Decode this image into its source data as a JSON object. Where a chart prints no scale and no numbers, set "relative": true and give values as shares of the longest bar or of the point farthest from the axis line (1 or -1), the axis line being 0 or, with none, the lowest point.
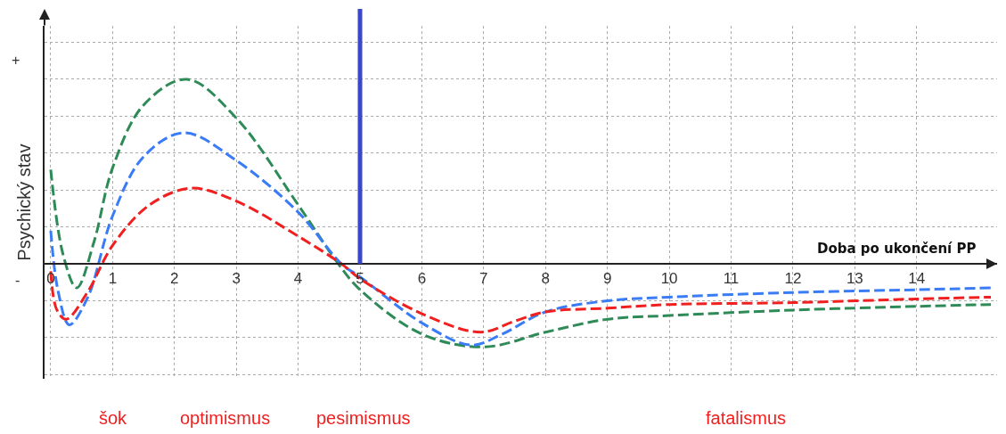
{
  "chart_data": {
    "type": "line",
    "relative": true,
    "xlabel": "Doba po ukončení PP",
    "ylabel": "Psychický stav",
    "xlim": [
      -0.1,
      15.3
    ],
    "xticks": [
      0,
      1,
      2,
      3,
      4,
      5,
      6,
      7,
      8,
      9,
      10,
      11,
      12,
      13,
      14
    ],
    "series": [
      {
        "color": "#2e8b57",
        "x": [
          0,
          0.2,
          0.42,
          0.7,
          1,
          1.5,
          2.2,
          3,
          4,
          4.65,
          5,
          6,
          7,
          8,
          9,
          10,
          12,
          14,
          15.2
        ],
        "values": [
          0.51,
          0.05,
          -0.13,
          0.12,
          0.52,
          0.86,
          1.0,
          0.79,
          0.32,
          0,
          -0.14,
          -0.38,
          -0.45,
          -0.37,
          -0.3,
          -0.28,
          -0.25,
          -0.23,
          -0.22
        ]
      },
      {
        "color": "#3a7cf5",
        "x": [
          0,
          0.12,
          0.3,
          0.6,
          1,
          1.5,
          2.15,
          3,
          4,
          4.7,
          5,
          6,
          6.8,
          7.3,
          8,
          9,
          10,
          12,
          14,
          15.2
        ],
        "values": [
          0.18,
          -0.15,
          -0.33,
          -0.18,
          0.26,
          0.58,
          0.71,
          0.56,
          0.28,
          0,
          -0.07,
          -0.32,
          -0.44,
          -0.38,
          -0.26,
          -0.2,
          -0.18,
          -0.155,
          -0.14,
          -0.13
        ]
      },
      {
        "color": "#f02020",
        "x": [
          0,
          0.1,
          0.25,
          0.6,
          1,
          1.6,
          2.27,
          3,
          4,
          4.7,
          5,
          6,
          6.95,
          7.5,
          8,
          9,
          10,
          12,
          14,
          15.2
        ],
        "values": [
          -0.04,
          -0.25,
          -0.3,
          -0.15,
          0.1,
          0.32,
          0.41,
          0.34,
          0.15,
          0,
          -0.08,
          -0.27,
          -0.37,
          -0.31,
          -0.26,
          -0.24,
          -0.22,
          -0.21,
          -0.19,
          -0.18
        ]
      }
    ],
    "ref_lines": [
      {
        "axis": "x",
        "value": 5,
        "color": "#3a47c8",
        "line_style": "solid"
      }
    ],
    "annotations": [
      "+",
      "-",
      "šok",
      "optimismus",
      "pesimismus",
      "fatalismus"
    ],
    "grid": true,
    "line_style": "dashed",
    "marker": "none"
  }
}
